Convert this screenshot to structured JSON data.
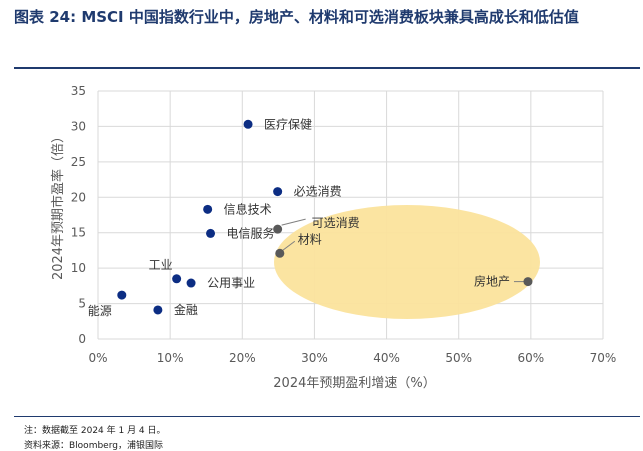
{
  "header": {
    "title": "图表 24: MSCI 中国指数行业中，房地产、材料和可选消费板块兼具高成长和低估值"
  },
  "footer": {
    "note": "注：数据截至 2024 年 1 月 4 日。",
    "source": "资料来源：Bloomberg，浦银国际"
  },
  "colors": {
    "point": "#0c2d83",
    "highlight_point": "#595959",
    "ellipse": "#fbe39c",
    "grid": "#d9d9d9",
    "brand": "#1f3a6e"
  },
  "chart_data": {
    "type": "scatter",
    "xlabel": "2024年预期盈利增速（%）",
    "ylabel": "2024年预期市盈率（倍）",
    "xlim": [
      0,
      70
    ],
    "ylim": [
      0,
      35
    ],
    "x_ticks": [
      "0%",
      "10%",
      "20%",
      "30%",
      "40%",
      "50%",
      "60%",
      "70%"
    ],
    "y_ticks": [
      "0",
      "5",
      "10",
      "15",
      "20",
      "25",
      "30",
      "35"
    ],
    "grid": true,
    "points": [
      {
        "label": "医疗保健",
        "x": 20.8,
        "y": 30.3,
        "highlight": false
      },
      {
        "label": "必选消费",
        "x": 24.9,
        "y": 20.8,
        "highlight": false
      },
      {
        "label": "信息技术",
        "x": 15.2,
        "y": 18.3,
        "highlight": false
      },
      {
        "label": "可选消费",
        "x": 24.9,
        "y": 15.5,
        "highlight": true
      },
      {
        "label": "电信服务",
        "x": 15.6,
        "y": 14.9,
        "highlight": false
      },
      {
        "label": "材料",
        "x": 25.2,
        "y": 12.1,
        "highlight": true
      },
      {
        "label": "工业",
        "x": 10.9,
        "y": 8.5,
        "highlight": false
      },
      {
        "label": "公用事业",
        "x": 12.9,
        "y": 7.9,
        "highlight": false
      },
      {
        "label": "房地产",
        "x": 59.6,
        "y": 8.1,
        "highlight": true
      },
      {
        "label": "能源",
        "x": 3.3,
        "y": 6.2,
        "highlight": false
      },
      {
        "label": "金融",
        "x": 8.3,
        "y": 4.1,
        "highlight": false
      }
    ]
  }
}
